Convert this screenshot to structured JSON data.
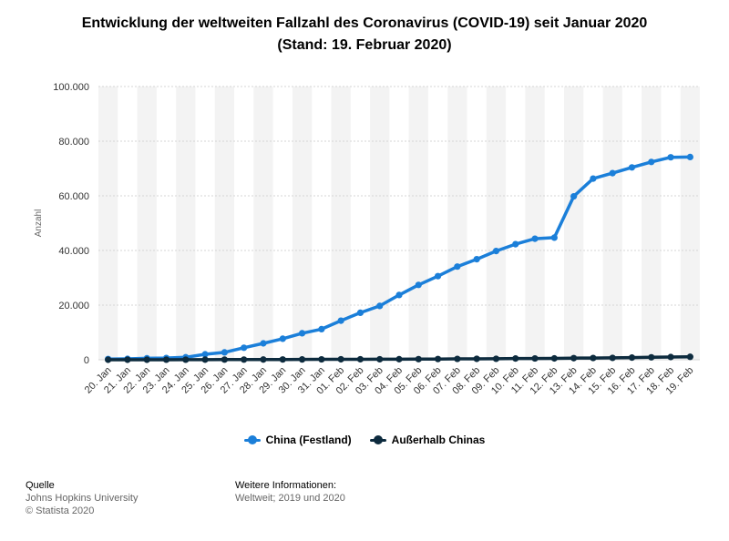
{
  "title_line1": "Entwicklung der weltweiten Fallzahl des Coronavirus (COVID-19) seit Januar 2020",
  "title_line2": "(Stand: 19. Februar 2020)",
  "source": {
    "heading": "Quelle",
    "line1": "Johns Hopkins University",
    "line2": "© Statista 2020"
  },
  "more_info": {
    "heading": "Weitere Informationen:",
    "line1": "Weltweit; 2019 und 2020"
  },
  "chart_data": {
    "type": "line",
    "ylabel": "Anzahl",
    "ylim": [
      0,
      100000
    ],
    "yticks": [
      0,
      20000,
      40000,
      60000,
      80000,
      100000
    ],
    "ytick_labels": [
      "0",
      "20.000",
      "40.000",
      "60.000",
      "80.000",
      "100.000"
    ],
    "grid": true,
    "legend_position": "bottom",
    "categories": [
      "20. Jan",
      "21. Jan",
      "22. Jan",
      "23. Jan",
      "24. Jan",
      "25. Jan",
      "26. Jan",
      "27. Jan",
      "28. Jan",
      "29. Jan",
      "30. Jan",
      "31. Jan",
      "01. Feb",
      "02. Feb",
      "03. Feb",
      "04. Feb",
      "05. Feb",
      "06. Feb",
      "07. Feb",
      "08. Feb",
      "09. Feb",
      "10. Feb",
      "11. Feb",
      "12. Feb",
      "13. Feb",
      "14. Feb",
      "15. Feb",
      "16. Feb",
      "17. Feb",
      "18. Feb",
      "19. Feb"
    ],
    "series": [
      {
        "name": "China (Festland)",
        "color": "#1b7fd9",
        "values": [
          278,
          326,
          547,
          639,
          916,
          2000,
          2700,
          4400,
          6000,
          7700,
          9700,
          11200,
          14300,
          17200,
          19700,
          23700,
          27400,
          30600,
          34100,
          36800,
          39800,
          42300,
          44300,
          44700,
          59800,
          66300,
          68300,
          70400,
          72400,
          74100,
          74200
        ]
      },
      {
        "name": "Außerhalb Chinas",
        "color": "#0d2b3e",
        "values": [
          4,
          6,
          8,
          14,
          25,
          40,
          57,
          64,
          87,
          105,
          118,
          153,
          173,
          183,
          188,
          212,
          227,
          265,
          317,
          343,
          361,
          457,
          476,
          502,
          590,
          649,
          684,
          795,
          898,
          999,
          1073
        ]
      }
    ]
  }
}
